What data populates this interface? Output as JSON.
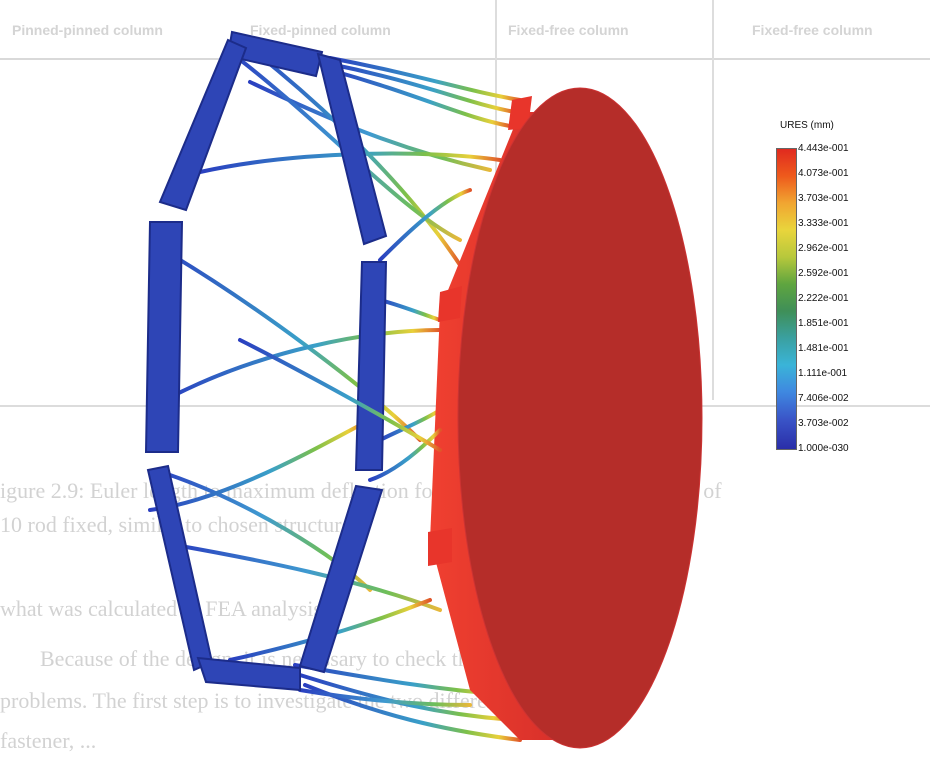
{
  "background_page": {
    "table_headers": [
      "Pinned-pinned column",
      "Fixed-pinned column",
      "Fixed-free column",
      "Fixed-free column"
    ],
    "text_lines": [
      "igure 2.9: Euler length to maximum deflection for rod structure, with both ends of",
      "10 rod fixed, similar to chosen structure",
      "what was calculated in FEA analysis",
      "Because of the design, it is necessary to check the m",
      "problems. The first step is to investigate the two different types of",
      "fastener, ..."
    ]
  },
  "legend": {
    "title": "URES (mm)",
    "values": [
      "4.443e-001",
      "4.073e-001",
      "3.703e-001",
      "3.333e-001",
      "2.962e-001",
      "2.592e-001",
      "2.222e-001",
      "1.851e-001",
      "1.481e-001",
      "1.111e-001",
      "7.406e-002",
      "3.703e-002",
      "1.000e-030"
    ]
  },
  "colors": {
    "frame": "#2a43b3",
    "frame_dark": "#1a2d8a",
    "disc": "#b52d29",
    "disc_rim": "#e8352b",
    "legend_max": "#e02a1f",
    "legend_min": "#2a2ea8"
  }
}
